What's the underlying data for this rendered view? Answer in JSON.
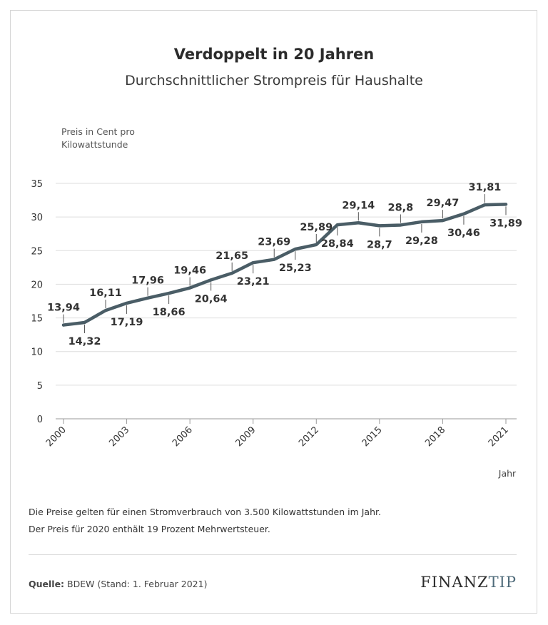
{
  "chart_data": {
    "type": "line",
    "title": "Verdoppelt in 20 Jahren",
    "subtitle": "Durchschnittlicher Strompreis für Haushalte",
    "ylabel_lines": [
      "Preis in Cent pro",
      "Kilowattstunde"
    ],
    "xlabel": "Jahr",
    "ylim": [
      0,
      35
    ],
    "yticks": [
      0,
      5,
      10,
      15,
      20,
      25,
      30,
      35
    ],
    "xlim": [
      2000,
      2021
    ],
    "xticks": [
      2000,
      2003,
      2006,
      2009,
      2012,
      2015,
      2018,
      2021
    ],
    "grid": true,
    "series": [
      {
        "color": "#4a5d66",
        "points": [
          {
            "x": 2000,
            "y": 13.94,
            "label": "13,94",
            "pos": "above"
          },
          {
            "x": 2001,
            "y": 14.32,
            "label": "14,32",
            "pos": "below"
          },
          {
            "x": 2002,
            "y": 16.11,
            "label": "16,11",
            "pos": "above"
          },
          {
            "x": 2003,
            "y": 17.19,
            "label": "17,19",
            "pos": "below"
          },
          {
            "x": 2004,
            "y": 17.96,
            "label": "17,96",
            "pos": "above"
          },
          {
            "x": 2005,
            "y": 18.66,
            "label": "18,66",
            "pos": "below"
          },
          {
            "x": 2006,
            "y": 19.46,
            "label": "19,46",
            "pos": "above"
          },
          {
            "x": 2007,
            "y": 20.64,
            "label": "20,64",
            "pos": "below"
          },
          {
            "x": 2008,
            "y": 21.65,
            "label": "21,65",
            "pos": "above"
          },
          {
            "x": 2009,
            "y": 23.21,
            "label": "23,21",
            "pos": "below"
          },
          {
            "x": 2010,
            "y": 23.69,
            "label": "23,69",
            "pos": "above"
          },
          {
            "x": 2011,
            "y": 25.23,
            "label": "25,23",
            "pos": "below"
          },
          {
            "x": 2012,
            "y": 25.89,
            "label": "25,89",
            "pos": "above"
          },
          {
            "x": 2013,
            "y": 28.84,
            "label": "28,84",
            "pos": "below"
          },
          {
            "x": 2014,
            "y": 29.14,
            "label": "29,14",
            "pos": "above"
          },
          {
            "x": 2015,
            "y": 28.7,
            "label": "28,7",
            "pos": "below"
          },
          {
            "x": 2016,
            "y": 28.8,
            "label": "28,8",
            "pos": "above"
          },
          {
            "x": 2017,
            "y": 29.28,
            "label": "29,28",
            "pos": "below"
          },
          {
            "x": 2018,
            "y": 29.47,
            "label": "29,47",
            "pos": "above"
          },
          {
            "x": 2019,
            "y": 30.46,
            "label": "30,46",
            "pos": "below"
          },
          {
            "x": 2020,
            "y": 31.81,
            "label": "31,81",
            "pos": "above"
          },
          {
            "x": 2021,
            "y": 31.89,
            "label": "31,89",
            "pos": "below"
          }
        ]
      }
    ]
  },
  "notes": [
    "Die Preise gelten für einen Stromverbrauch von 3.500 Kilowattstunden im Jahr.",
    "Der Preis für 2020 enthält 19 Prozent Mehrwertsteuer."
  ],
  "source": {
    "label": "Quelle:",
    "text": "BDEW (Stand: 1. Februar 2021)"
  },
  "logo": {
    "part1": "FINANZ",
    "part2": "TIP"
  }
}
